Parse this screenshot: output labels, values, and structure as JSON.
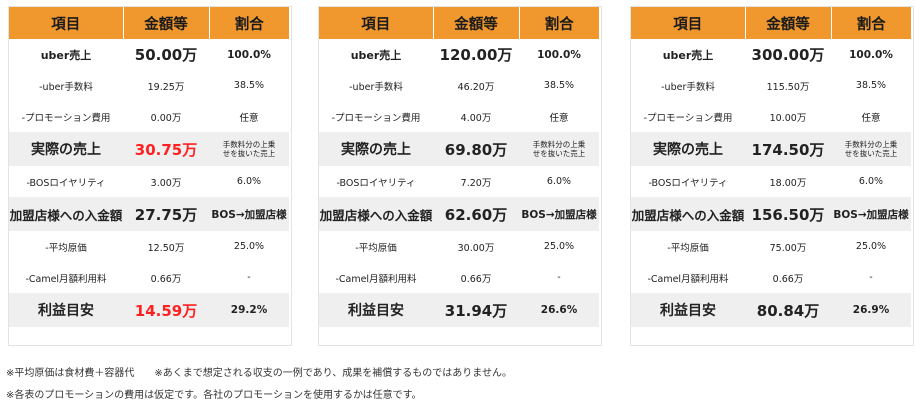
{
  "headers": [
    "項目",
    "金額等",
    "割合"
  ],
  "tables": [
    {
      "rows": [
        {
          "item": "uber売上",
          "amount": "50.00万",
          "ratio": "100.0%"
        },
        {
          "item": "-uber手数料",
          "amount": "19.25万",
          "ratio": "38.5%"
        },
        {
          "item": "-プロモーション費用",
          "amount": "0.00万",
          "ratio": "任意"
        },
        {
          "item": "実際の売上",
          "amount": "30.75万",
          "ratio": "手数料分の上乗\nせを抜いた売上"
        },
        {
          "item": "-BOSロイヤリティ",
          "amount": "3.00万",
          "ratio": "6.0%"
        },
        {
          "item": "加盟店様への入金額",
          "amount": "27.75万",
          "ratio": "BOS→加盟店様"
        },
        {
          "item": "-平均原価",
          "amount": "12.50万",
          "ratio": "25.0%"
        },
        {
          "item": "-Camel月額利用料",
          "amount": "0.66万",
          "ratio": "-"
        },
        {
          "item": "利益目安",
          "amount": "14.59万",
          "ratio": "29.2%"
        }
      ]
    },
    {
      "rows": [
        {
          "item": "uber売上",
          "amount": "120.00万",
          "ratio": "100.0%"
        },
        {
          "item": "-uber手数料",
          "amount": "46.20万",
          "ratio": "38.5%"
        },
        {
          "item": "-プロモーション費用",
          "amount": "4.00万",
          "ratio": "任意"
        },
        {
          "item": "実際の売上",
          "amount": "69.80万",
          "ratio": "手数料分の上乗\nせを抜いた売上"
        },
        {
          "item": "-BOSロイヤリティ",
          "amount": "7.20万",
          "ratio": "6.0%"
        },
        {
          "item": "加盟店様への入金額",
          "amount": "62.60万",
          "ratio": "BOS→加盟店様"
        },
        {
          "item": "-平均原価",
          "amount": "30.00万",
          "ratio": "25.0%"
        },
        {
          "item": "-Camel月額利用料",
          "amount": "0.66万",
          "ratio": "-"
        },
        {
          "item": "利益目安",
          "amount": "31.94万",
          "ratio": "26.6%"
        }
      ]
    },
    {
      "rows": [
        {
          "item": "uber売上",
          "amount": "300.00万",
          "ratio": "100.0%"
        },
        {
          "item": "-uber手数料",
          "amount": "115.50万",
          "ratio": "38.5%"
        },
        {
          "item": "-プロモーション費用",
          "amount": "10.00万",
          "ratio": "任意"
        },
        {
          "item": "実際の売上",
          "amount": "174.50万",
          "ratio": "手数料分の上乗\nせを抜いた売上"
        },
        {
          "item": "-BOSロイヤリティ",
          "amount": "18.00万",
          "ratio": "6.0%"
        },
        {
          "item": "加盟店様への入金額",
          "amount": "156.50万",
          "ratio": "BOS→加盟店様"
        },
        {
          "item": "-平均原価",
          "amount": "75.00万",
          "ratio": "25.0%"
        },
        {
          "item": "-Camel月額利用料",
          "amount": "0.66万",
          "ratio": "-"
        },
        {
          "item": "利益目安",
          "amount": "80.84万",
          "ratio": "26.9%"
        }
      ]
    }
  ],
  "footnotes": [
    "※平均原価は食材費＋容器代　　※あくまで想定される収支の一例であり、成果を補償するものではありません。",
    "※各表のプロモーションの費用は仮定です。各社のプロモーションを使用するかは任意です。"
  ],
  "colors": {
    "header_bg": "#f0982e",
    "highlight_row_bg": "#efefef",
    "accent_red": "#ff2121"
  }
}
